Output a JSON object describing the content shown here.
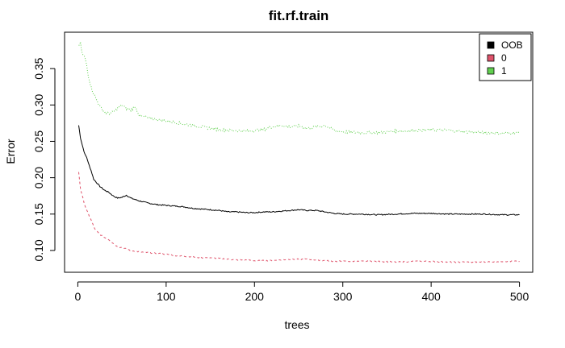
{
  "chart_data": {
    "type": "line",
    "title": "fit.rf.train",
    "xlabel": "trees",
    "ylabel": "Error",
    "xlim": [
      0,
      500
    ],
    "ylim": [
      0.07,
      0.4
    ],
    "x_ticks": [
      "0",
      "100",
      "200",
      "300",
      "400",
      "500"
    ],
    "y_ticks": [
      "0.10",
      "0.15",
      "0.20",
      "0.25",
      "0.30",
      "0.35"
    ],
    "grid": false,
    "legend_position": "top-right",
    "x": [
      1,
      3,
      5,
      8,
      10,
      12,
      15,
      18,
      20,
      25,
      30,
      35,
      40,
      45,
      50,
      55,
      60,
      65,
      70,
      80,
      90,
      100,
      110,
      120,
      130,
      140,
      150,
      160,
      170,
      180,
      190,
      200,
      210,
      220,
      230,
      240,
      250,
      260,
      270,
      280,
      290,
      300,
      320,
      340,
      360,
      380,
      400,
      420,
      440,
      460,
      480,
      500
    ],
    "series": [
      {
        "name": "OOB",
        "color": "#000000",
        "dash": "solid",
        "values": [
          0.272,
          0.255,
          0.245,
          0.232,
          0.228,
          0.22,
          0.21,
          0.198,
          0.195,
          0.188,
          0.183,
          0.18,
          0.175,
          0.172,
          0.173,
          0.176,
          0.172,
          0.17,
          0.168,
          0.165,
          0.163,
          0.162,
          0.161,
          0.16,
          0.158,
          0.157,
          0.156,
          0.155,
          0.153,
          0.153,
          0.152,
          0.152,
          0.153,
          0.153,
          0.154,
          0.155,
          0.156,
          0.155,
          0.155,
          0.153,
          0.151,
          0.15,
          0.15,
          0.149,
          0.15,
          0.151,
          0.151,
          0.15,
          0.15,
          0.15,
          0.149,
          0.149
        ]
      },
      {
        "name": "0",
        "color": "#df536b",
        "dash": "dash",
        "values": [
          0.208,
          0.185,
          0.175,
          0.162,
          0.155,
          0.15,
          0.142,
          0.133,
          0.128,
          0.122,
          0.118,
          0.115,
          0.11,
          0.105,
          0.104,
          0.102,
          0.1,
          0.099,
          0.098,
          0.097,
          0.096,
          0.095,
          0.093,
          0.092,
          0.091,
          0.09,
          0.09,
          0.089,
          0.088,
          0.087,
          0.087,
          0.086,
          0.086,
          0.086,
          0.087,
          0.088,
          0.088,
          0.088,
          0.087,
          0.086,
          0.085,
          0.085,
          0.085,
          0.085,
          0.084,
          0.085,
          0.085,
          0.084,
          0.084,
          0.084,
          0.085,
          0.085
        ]
      },
      {
        "name": "1",
        "color": "#61d04f",
        "dash": "dot",
        "values": [
          0.38,
          0.385,
          0.37,
          0.365,
          0.355,
          0.34,
          0.325,
          0.315,
          0.31,
          0.298,
          0.29,
          0.288,
          0.29,
          0.295,
          0.3,
          0.295,
          0.293,
          0.298,
          0.285,
          0.282,
          0.28,
          0.278,
          0.276,
          0.274,
          0.272,
          0.27,
          0.268,
          0.266,
          0.265,
          0.265,
          0.264,
          0.265,
          0.266,
          0.27,
          0.272,
          0.27,
          0.271,
          0.268,
          0.27,
          0.272,
          0.265,
          0.263,
          0.262,
          0.262,
          0.264,
          0.265,
          0.266,
          0.265,
          0.263,
          0.262,
          0.261,
          0.262
        ]
      }
    ]
  }
}
